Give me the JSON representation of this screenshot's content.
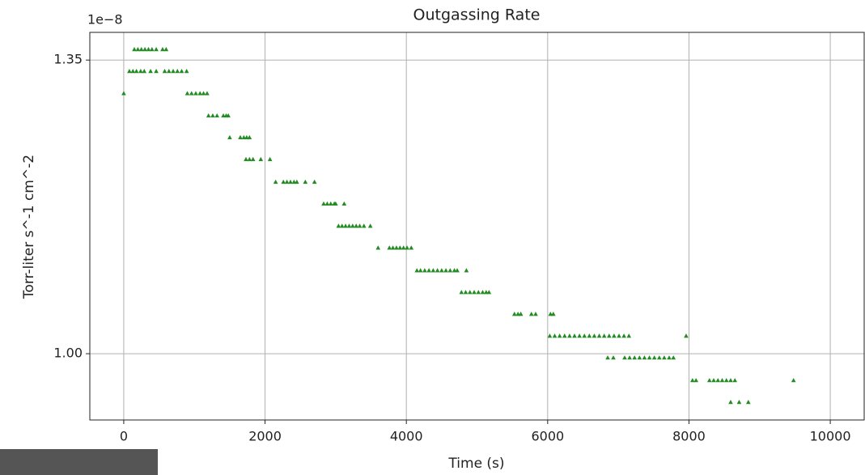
{
  "chart_data": {
    "type": "scatter",
    "title": "Outgassing Rate",
    "xlabel": "Time (s)",
    "ylabel": "Torr-liter s^-1 cm^-2",
    "y_offset_label": "1e−8",
    "color": "#228b22",
    "grid": true,
    "xlim": [
      -480,
      10480
    ],
    "ylim": [
      0.921,
      1.383
    ],
    "xticks": [
      0,
      2000,
      4000,
      6000,
      8000,
      10000
    ],
    "yticks": [
      {
        "value": 1,
        "label": "1.00"
      },
      1.35
    ],
    "x": [
      0,
      150,
      200,
      250,
      300,
      350,
      400,
      460,
      550,
      600,
      80,
      130,
      180,
      240,
      290,
      380,
      460,
      580,
      640,
      700,
      760,
      820,
      890,
      900,
      960,
      1020,
      1080,
      1130,
      1180,
      1200,
      1260,
      1320,
      1410,
      1450,
      1480,
      1500,
      1650,
      1700,
      1740,
      1780,
      1730,
      1780,
      1830,
      1940,
      2070,
      2150,
      2260,
      2310,
      2360,
      2410,
      2450,
      2570,
      2700,
      2830,
      2880,
      2930,
      2980,
      3000,
      3120,
      3040,
      3090,
      3140,
      3190,
      3240,
      3290,
      3340,
      3400,
      3490,
      3600,
      3760,
      3810,
      3860,
      3910,
      3960,
      4010,
      4070,
      4150,
      4200,
      4260,
      4320,
      4380,
      4440,
      4500,
      4560,
      4620,
      4680,
      4720,
      4850,
      4780,
      4840,
      4900,
      4960,
      5020,
      5080,
      5130,
      5170,
      5530,
      5580,
      5620,
      5770,
      5830,
      6040,
      6080,
      6030,
      6100,
      6170,
      6240,
      6310,
      6380,
      6450,
      6520,
      6590,
      6660,
      6730,
      6800,
      6870,
      6940,
      7010,
      7080,
      7150,
      7960,
      6850,
      6930,
      7090,
      7160,
      7230,
      7300,
      7370,
      7440,
      7510,
      7580,
      7650,
      7720,
      7780,
      8050,
      8100,
      8290,
      8350,
      8410,
      8470,
      8530,
      8590,
      8650,
      9480,
      8590,
      8710,
      8840
    ],
    "values": [
      1.31,
      1.3625,
      1.3625,
      1.3625,
      1.3625,
      1.3625,
      1.3625,
      1.3625,
      1.3625,
      1.3625,
      1.3365,
      1.3365,
      1.3365,
      1.3365,
      1.3365,
      1.3365,
      1.3365,
      1.3365,
      1.3365,
      1.3365,
      1.3365,
      1.3365,
      1.3365,
      1.31,
      1.31,
      1.31,
      1.31,
      1.31,
      1.31,
      1.2835,
      1.2835,
      1.2835,
      1.2835,
      1.2835,
      1.2835,
      1.2575,
      1.2575,
      1.2575,
      1.2575,
      1.2575,
      1.2315,
      1.2315,
      1.2315,
      1.2315,
      1.2315,
      1.2045,
      1.2045,
      1.2045,
      1.2045,
      1.2045,
      1.2045,
      1.2045,
      1.2045,
      1.1785,
      1.1785,
      1.1785,
      1.1785,
      1.1785,
      1.1785,
      1.152,
      1.152,
      1.152,
      1.152,
      1.152,
      1.152,
      1.152,
      1.152,
      1.152,
      1.126,
      1.126,
      1.126,
      1.126,
      1.126,
      1.126,
      1.126,
      1.126,
      1.099,
      1.099,
      1.099,
      1.099,
      1.099,
      1.099,
      1.099,
      1.099,
      1.099,
      1.099,
      1.099,
      1.099,
      1.073,
      1.073,
      1.073,
      1.073,
      1.073,
      1.073,
      1.073,
      1.073,
      1.047,
      1.047,
      1.047,
      1.047,
      1.047,
      1.047,
      1.047,
      1.021,
      1.021,
      1.021,
      1.021,
      1.021,
      1.021,
      1.021,
      1.021,
      1.021,
      1.021,
      1.021,
      1.021,
      1.021,
      1.021,
      1.021,
      1.021,
      1.021,
      1.021,
      0.995,
      0.995,
      0.995,
      0.995,
      0.995,
      0.995,
      0.995,
      0.995,
      0.995,
      0.995,
      0.995,
      0.995,
      0.995,
      0.968,
      0.968,
      0.968,
      0.968,
      0.968,
      0.968,
      0.968,
      0.968,
      0.968,
      0.968,
      0.942,
      0.942,
      0.942
    ]
  }
}
